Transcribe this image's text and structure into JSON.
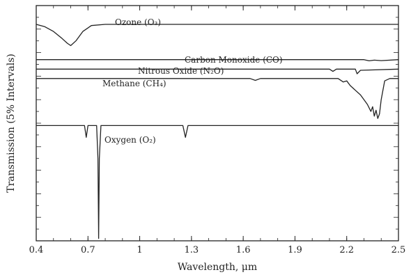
{
  "chart_data": {
    "type": "line",
    "xlabel": "Wavelength, μm",
    "ylabel": "Transmission (5% Intervals)",
    "xlim": [
      0.4,
      2.5
    ],
    "x_ticks": [
      "0.4",
      "0.7",
      "1",
      "1.3",
      "1.6",
      "1.9",
      "2.2",
      "2.5"
    ],
    "x_tick_values": [
      0.4,
      0.7,
      1.0,
      1.3,
      1.6,
      1.9,
      2.2,
      2.5
    ],
    "y_tick_labels_shown": false,
    "series": [
      {
        "name": "Ozone (O₃)",
        "base_level": 0.92,
        "points": [
          [
            0.4,
            0.92
          ],
          [
            0.45,
            0.91
          ],
          [
            0.5,
            0.89
          ],
          [
            0.55,
            0.86
          ],
          [
            0.58,
            0.84
          ],
          [
            0.6,
            0.83
          ],
          [
            0.63,
            0.85
          ],
          [
            0.67,
            0.89
          ],
          [
            0.72,
            0.915
          ],
          [
            0.8,
            0.92
          ],
          [
            2.5,
            0.92
          ]
        ]
      },
      {
        "name": "Carbon Monoxide (CO)",
        "base_level": 0.77,
        "points": [
          [
            0.4,
            0.77
          ],
          [
            2.3,
            0.77
          ],
          [
            2.33,
            0.765
          ],
          [
            2.36,
            0.768
          ],
          [
            2.4,
            0.766
          ],
          [
            2.5,
            0.77
          ]
        ]
      },
      {
        "name": "Nitrous Oxide (N₂O)",
        "base_level": 0.73,
        "points": [
          [
            0.4,
            0.73
          ],
          [
            2.1,
            0.73
          ],
          [
            2.12,
            0.72
          ],
          [
            2.14,
            0.73
          ],
          [
            2.25,
            0.73
          ],
          [
            2.26,
            0.71
          ],
          [
            2.28,
            0.725
          ],
          [
            2.5,
            0.73
          ]
        ]
      },
      {
        "name": "Methane (CH₄)",
        "base_level": 0.69,
        "points": [
          [
            0.4,
            0.69
          ],
          [
            1.64,
            0.69
          ],
          [
            1.67,
            0.682
          ],
          [
            1.7,
            0.69
          ],
          [
            2.15,
            0.69
          ],
          [
            2.18,
            0.675
          ],
          [
            2.2,
            0.68
          ],
          [
            2.22,
            0.66
          ],
          [
            2.25,
            0.64
          ],
          [
            2.28,
            0.62
          ],
          [
            2.3,
            0.6
          ],
          [
            2.32,
            0.58
          ],
          [
            2.34,
            0.55
          ],
          [
            2.35,
            0.57
          ],
          [
            2.36,
            0.53
          ],
          [
            2.37,
            0.555
          ],
          [
            2.38,
            0.52
          ],
          [
            2.39,
            0.54
          ],
          [
            2.4,
            0.6
          ],
          [
            2.42,
            0.68
          ],
          [
            2.45,
            0.69
          ],
          [
            2.5,
            0.69
          ]
        ]
      },
      {
        "name": "Oxygen (O₂)",
        "base_level": 0.49,
        "points": [
          [
            0.4,
            0.49
          ],
          [
            0.68,
            0.49
          ],
          [
            0.69,
            0.44
          ],
          [
            0.7,
            0.49
          ],
          [
            0.75,
            0.49
          ],
          [
            0.758,
            0.35
          ],
          [
            0.762,
            0.01
          ],
          [
            0.766,
            0.35
          ],
          [
            0.775,
            0.49
          ],
          [
            1.25,
            0.49
          ],
          [
            1.265,
            0.44
          ],
          [
            1.28,
            0.49
          ],
          [
            2.5,
            0.49
          ]
        ]
      }
    ],
    "grid": false,
    "legend": "none"
  }
}
